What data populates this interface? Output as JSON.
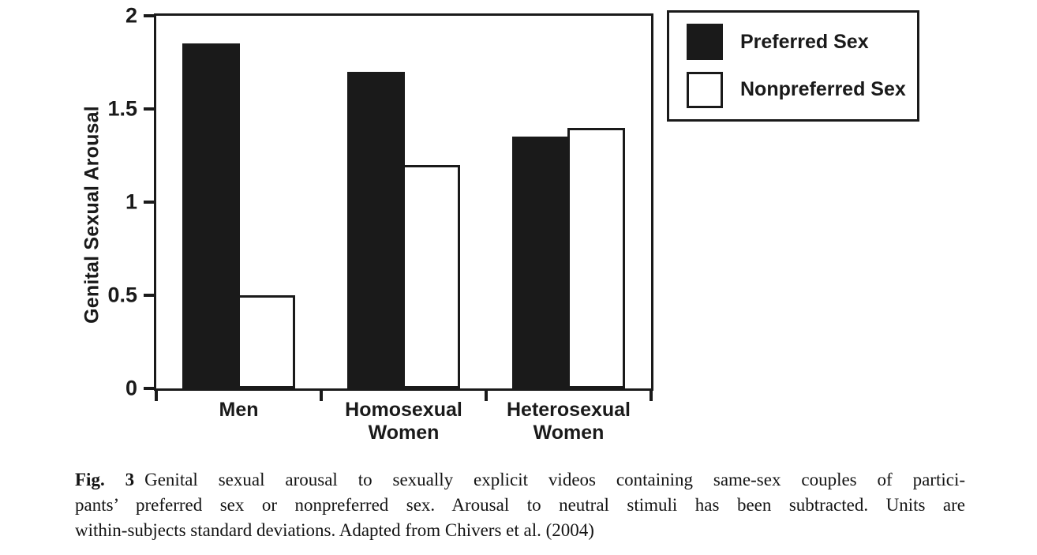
{
  "colors": {
    "ink": "#1a1a1a",
    "background": "#ffffff"
  },
  "chart_data": {
    "type": "bar",
    "title": "",
    "xlabel": "",
    "ylabel": "Genital Sexual Arousal",
    "ylim": [
      0,
      2
    ],
    "grid": false,
    "legend_position": "outside-top-right",
    "yticks": [
      {
        "label": "2",
        "value": 2
      },
      {
        "label": "1.5",
        "value": 1.5
      },
      {
        "label": "1",
        "value": 1
      },
      {
        "label": "0.5",
        "value": 0.5
      },
      {
        "label": "0",
        "value": 0
      }
    ],
    "categories": [
      "Men",
      "Homosexual\nWomen",
      "Heterosexual\nWomen"
    ],
    "series": [
      {
        "name": "Preferred Sex",
        "fill": "#1a1a1a",
        "values": [
          1.85,
          1.7,
          1.35
        ]
      },
      {
        "name": "Nonpreferred Sex",
        "fill": "#ffffff",
        "outline": "#1a1a1a",
        "values": [
          0.5,
          1.2,
          1.4
        ]
      }
    ]
  },
  "caption": {
    "fig_label": "Fig. 3",
    "lines": [
      "Genital sexual arousal to sexually explicit videos containing same-sex couples of partici-",
      "pants’ preferred sex or nonpreferred sex. Arousal to neutral stimuli has been subtracted. Units are",
      "within-subjects standard deviations. Adapted from Chivers et al. (2004)"
    ]
  }
}
